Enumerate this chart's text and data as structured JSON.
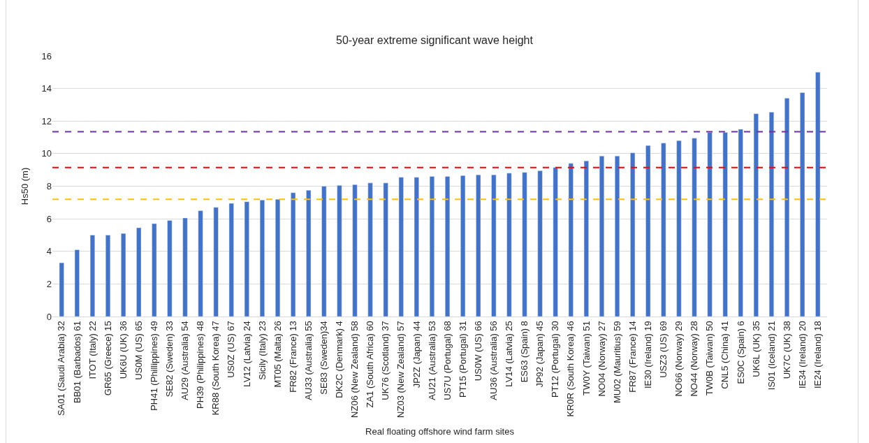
{
  "chart_data": {
    "type": "bar",
    "title": "50-year extreme significant wave height",
    "xlabel": "Real floating offshore wind farm sites",
    "ylabel": "Hs50 (m)",
    "categories": [
      "SA01 (Saudi Arabia) 32",
      "BB01 (Barbados) 61",
      "ITOT (Italy) 22",
      "GR65 (Greece) 15",
      "UK6U (UK) 36",
      "US0M (US) 65",
      "PH41 (Phillippines) 49",
      "SE82 (Sweden) 33",
      "AU29 (Australia) 54",
      "PH39 (Philippines) 48",
      "KR88 (South Korea) 47",
      "US0Z (US) 67",
      "LV12 (Latvia) 24",
      "Sicily (Italy) 23",
      "MT05 (Malta) 26",
      "FR82 (France) 13",
      "AU33 (Australia) 55",
      "SE83 (Sweden)34",
      "DK2C (Denmark) 4",
      "NZ06 (New Zealand) 58",
      "ZA1 (South Africa) 60",
      "UK76 (Scotland) 37",
      "NZ03 (New Zealand) 57",
      "JP2Z (Japan) 44",
      "AU21 (Australia) 53",
      "US7U (Portugal) 68",
      "PT15 (Portugal) 31",
      "US0W (US) 66",
      "AU36 (Australia) 56",
      "LV14 (Latvia) 25",
      "ES63 (Spain) 8",
      "JP92 (Japan) 45",
      "PT12 (Portugal) 30",
      "KR0R (South Korea) 46",
      "TW0Y (Taiwan) 51",
      "NO04 (Norway) 27",
      "MU02 (Mauritius) 59",
      "FR87 (France) 14",
      "IE30 (Ireland) 19",
      "USZ3 (US) 69",
      "NO66 (Norway) 29",
      "NO44 (Norway) 28",
      "TW0B (Taiwan) 50",
      "CNL5 (China) 41",
      "ES0C (Spain) 6",
      "UK6L (UK) 35",
      "IS01 (Iceland) 21",
      "UK7C (UK) 38",
      "IE34 (Ireland) 20",
      "IE24 (Ireland) 18"
    ],
    "values": [
      3.3,
      4.1,
      5.0,
      5.0,
      5.1,
      5.45,
      5.7,
      5.9,
      6.05,
      6.5,
      6.7,
      6.95,
      7.05,
      7.15,
      7.2,
      7.6,
      7.75,
      8.0,
      8.05,
      8.1,
      8.2,
      8.2,
      8.55,
      8.55,
      8.6,
      8.6,
      8.65,
      8.7,
      8.7,
      8.8,
      8.85,
      8.95,
      9.15,
      9.4,
      9.55,
      9.85,
      9.85,
      10.05,
      10.5,
      10.65,
      10.8,
      10.95,
      11.3,
      11.3,
      11.5,
      12.45,
      12.55,
      13.4,
      13.75,
      15.0
    ],
    "color": "#4472c4",
    "ylim": [
      0,
      16
    ],
    "yticks": [
      0,
      2,
      4,
      6,
      8,
      10,
      12,
      14,
      16
    ],
    "grid": "y",
    "ref_lines": [
      {
        "axis": "y",
        "value": 11.35,
        "color": "#7030a0",
        "line_style": "dashed"
      },
      {
        "axis": "y",
        "value": 9.15,
        "color": "#ff0000",
        "line_style": "dashed"
      },
      {
        "axis": "y",
        "value": 7.2,
        "color": "#ffc000",
        "line_style": "dashed"
      }
    ]
  }
}
